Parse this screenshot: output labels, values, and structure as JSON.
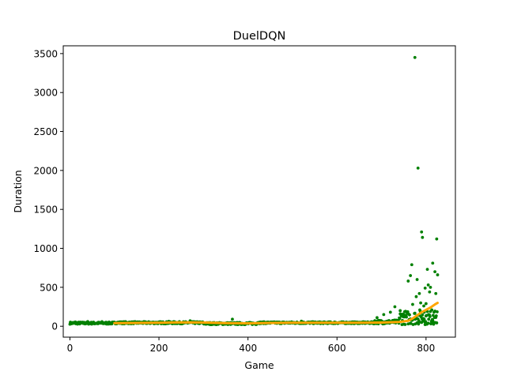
{
  "chart_data": {
    "type": "scatter",
    "title": "DuelDQN",
    "xlabel": "Game",
    "ylabel": "Duration",
    "xlim": [
      -15,
      866
    ],
    "ylim": [
      -140,
      3600
    ],
    "x_ticks": [
      0,
      200,
      400,
      600,
      800
    ],
    "y_ticks": [
      0,
      500,
      1000,
      1500,
      2000,
      2500,
      3000,
      3500
    ],
    "grid": false,
    "legend": "none",
    "colors": {
      "points": "#008000",
      "rolling_mean": "#ffa500",
      "axes": "#000000",
      "background": "#ffffff"
    },
    "series": [
      {
        "kind": "scatter",
        "color": "#008000",
        "base": {
          "segments": [
            {
              "x_start": 0,
              "x_end": 100,
              "center": 40,
              "spread": 14
            },
            {
              "x_start": 100,
              "x_end": 300,
              "center": 45,
              "spread": 14
            },
            {
              "x_start": 300,
              "x_end": 420,
              "center": 35,
              "spread": 14
            },
            {
              "x_start": 420,
              "x_end": 680,
              "center": 45,
              "spread": 12
            },
            {
              "x_start": 680,
              "x_end": 740,
              "center": 55,
              "spread": 25
            },
            {
              "x_start": 740,
              "x_end": 826,
              "center": 110,
              "spread": 90
            }
          ]
        },
        "points": [
          [
            12,
            55
          ],
          [
            40,
            60
          ],
          [
            72,
            58
          ],
          [
            222,
            62
          ],
          [
            270,
            70
          ],
          [
            365,
            90
          ],
          [
            520,
            65
          ],
          [
            690,
            110
          ],
          [
            705,
            150
          ],
          [
            720,
            180
          ],
          [
            730,
            250
          ],
          [
            742,
            200
          ],
          [
            750,
            150
          ],
          [
            755,
            120
          ],
          [
            760,
            580
          ],
          [
            765,
            650
          ],
          [
            768,
            790
          ],
          [
            770,
            280
          ],
          [
            775,
            3450
          ],
          [
            778,
            380
          ],
          [
            780,
            600
          ],
          [
            782,
            2030
          ],
          [
            785,
            420
          ],
          [
            788,
            300
          ],
          [
            790,
            1210
          ],
          [
            792,
            1140
          ],
          [
            795,
            260
          ],
          [
            798,
            490
          ],
          [
            800,
            290
          ],
          [
            803,
            730
          ],
          [
            805,
            530
          ],
          [
            808,
            440
          ],
          [
            810,
            500
          ],
          [
            813,
            210
          ],
          [
            815,
            810
          ],
          [
            818,
            180
          ],
          [
            820,
            700
          ],
          [
            822,
            420
          ],
          [
            824,
            1120
          ],
          [
            826,
            660
          ],
          [
            816,
            140
          ],
          [
            806,
            90
          ],
          [
            796,
            180
          ],
          [
            786,
            210
          ],
          [
            776,
            90
          ]
        ]
      },
      {
        "kind": "rolling_mean",
        "color": "#ffa500",
        "x": [
          100,
          150,
          200,
          250,
          300,
          350,
          400,
          450,
          500,
          550,
          600,
          650,
          700,
          740,
          760,
          770,
          780,
          790,
          800,
          810,
          820,
          826
        ],
        "y": [
          40,
          42,
          45,
          50,
          48,
          40,
          38,
          42,
          45,
          45,
          45,
          45,
          48,
          55,
          70,
          100,
          140,
          180,
          210,
          240,
          280,
          300
        ]
      }
    ]
  }
}
